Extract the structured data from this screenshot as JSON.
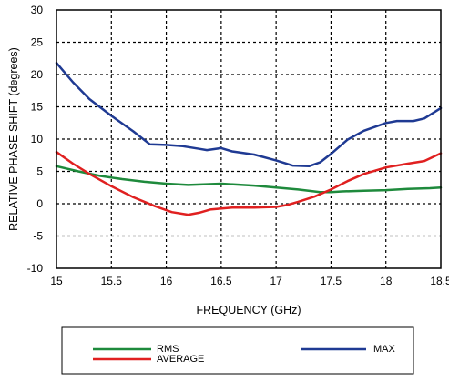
{
  "chart_data": {
    "type": "line",
    "xlabel": "FREQUENCY (GHz)",
    "ylabel": "RELATIVE PHASE SHIFT  (degrees)",
    "xlim": [
      15,
      18.5
    ],
    "ylim": [
      -10,
      30
    ],
    "x_ticks": [
      "15",
      "15.5",
      "16",
      "16.5",
      "17",
      "17.5",
      "18",
      "18.5"
    ],
    "y_ticks": [
      "-10",
      "-5",
      "0",
      "5",
      "10",
      "15",
      "20",
      "25",
      "30"
    ],
    "grid": true,
    "legend_position": "below plot",
    "series": [
      {
        "name": "MAX",
        "color": "#1f3a93",
        "points": [
          [
            15.0,
            21.8
          ],
          [
            15.15,
            18.8
          ],
          [
            15.3,
            16.2
          ],
          [
            15.5,
            13.6
          ],
          [
            15.7,
            11.2
          ],
          [
            15.85,
            9.2
          ],
          [
            16.0,
            9.1
          ],
          [
            16.15,
            8.9
          ],
          [
            16.3,
            8.5
          ],
          [
            16.37,
            8.3
          ],
          [
            16.5,
            8.6
          ],
          [
            16.6,
            8.1
          ],
          [
            16.8,
            7.6
          ],
          [
            17.0,
            6.7
          ],
          [
            17.15,
            5.9
          ],
          [
            17.3,
            5.8
          ],
          [
            17.4,
            6.4
          ],
          [
            17.5,
            7.7
          ],
          [
            17.65,
            9.9
          ],
          [
            17.8,
            11.3
          ],
          [
            18.0,
            12.5
          ],
          [
            18.1,
            12.8
          ],
          [
            18.25,
            12.8
          ],
          [
            18.35,
            13.2
          ],
          [
            18.5,
            14.8
          ]
        ]
      },
      {
        "name": "RMS",
        "color": "#1e8a3c",
        "points": [
          [
            15.0,
            5.8
          ],
          [
            15.2,
            5.0
          ],
          [
            15.4,
            4.3
          ],
          [
            15.6,
            3.8
          ],
          [
            15.8,
            3.4
          ],
          [
            16.0,
            3.1
          ],
          [
            16.2,
            2.9
          ],
          [
            16.5,
            3.1
          ],
          [
            16.8,
            2.8
          ],
          [
            17.0,
            2.5
          ],
          [
            17.2,
            2.2
          ],
          [
            17.4,
            1.8
          ],
          [
            17.5,
            1.8
          ],
          [
            17.6,
            1.9
          ],
          [
            17.8,
            2.0
          ],
          [
            18.0,
            2.1
          ],
          [
            18.2,
            2.3
          ],
          [
            18.4,
            2.4
          ],
          [
            18.5,
            2.5
          ]
        ]
      },
      {
        "name": "AVERAGE",
        "color": "#e02020",
        "points": [
          [
            15.0,
            8.0
          ],
          [
            15.15,
            6.2
          ],
          [
            15.3,
            4.6
          ],
          [
            15.5,
            2.7
          ],
          [
            15.7,
            1.0
          ],
          [
            15.9,
            -0.4
          ],
          [
            16.05,
            -1.3
          ],
          [
            16.2,
            -1.7
          ],
          [
            16.3,
            -1.4
          ],
          [
            16.4,
            -0.9
          ],
          [
            16.6,
            -0.6
          ],
          [
            16.8,
            -0.6
          ],
          [
            17.0,
            -0.5
          ],
          [
            17.1,
            -0.2
          ],
          [
            17.2,
            0.3
          ],
          [
            17.35,
            1.1
          ],
          [
            17.5,
            2.2
          ],
          [
            17.65,
            3.5
          ],
          [
            17.8,
            4.6
          ],
          [
            18.0,
            5.6
          ],
          [
            18.2,
            6.2
          ],
          [
            18.35,
            6.6
          ],
          [
            18.5,
            7.8
          ]
        ]
      }
    ]
  }
}
